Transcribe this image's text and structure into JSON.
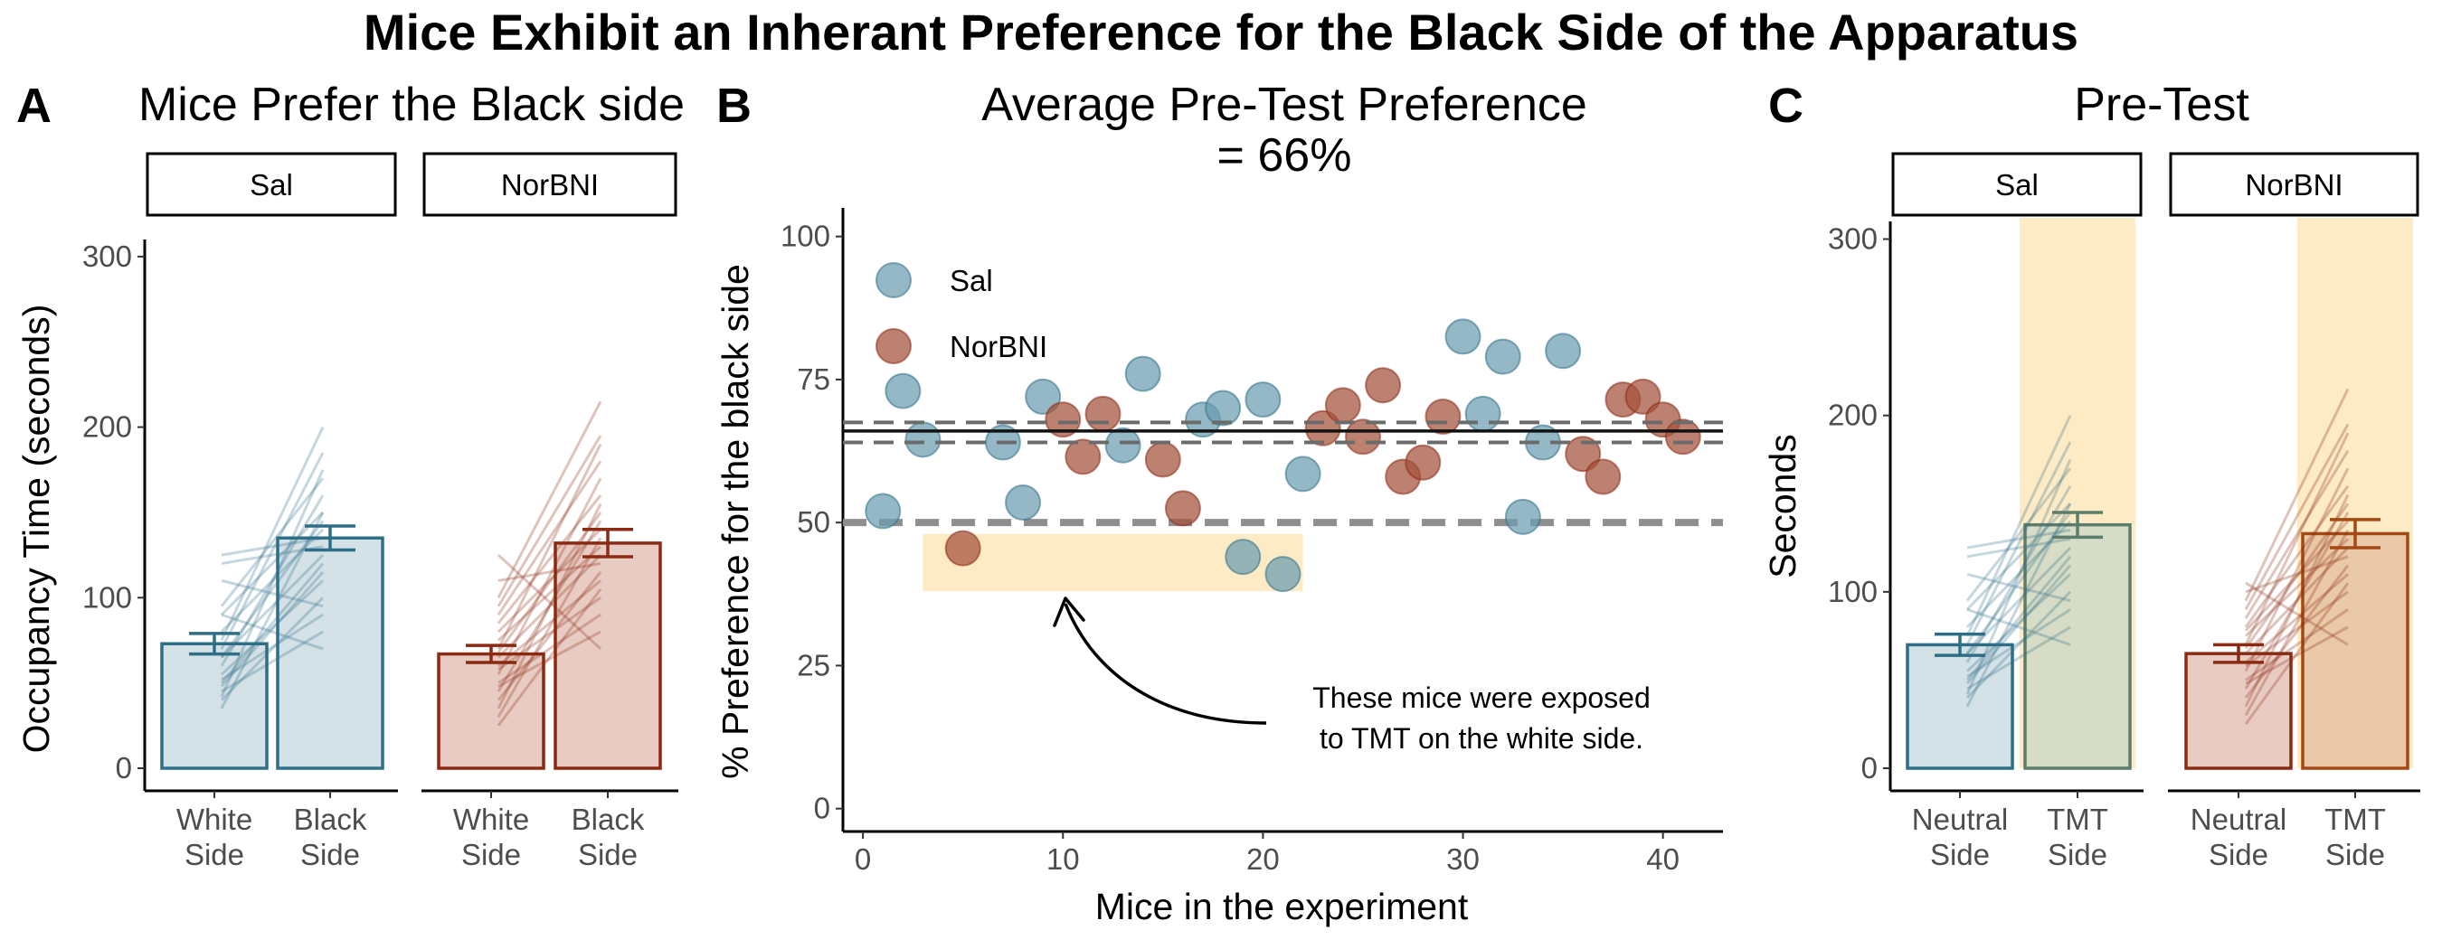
{
  "figure_title": "Mice Exhibit an Inherant Preference for the Black Side of the Apparatus",
  "colors": {
    "sal": "#2e6f87",
    "sal_fill": "#d4e1e7",
    "sal_point": "#6b9cb0",
    "norbni": "#8b2a12",
    "norbni_fill": "#e8ccc4",
    "norbni_point": "#a4513a",
    "tmt_band": "#fdebc6",
    "tmt_fill_sal": "#d6dcc5",
    "tmt_fill_norbni": "#e9c9a8",
    "tmt_edge_sal": "#5c7c6c",
    "tmt_edge_norbni": "#a44814"
  },
  "chart_data": [
    {
      "panel": "A",
      "type": "bar",
      "title": "Mice Prefer the Black side",
      "xlabel": "",
      "ylabel": "Occupancy Time (seconds)",
      "ylim": [
        0,
        310
      ],
      "yticks": [
        0,
        100,
        200,
        300
      ],
      "categories": [
        "White\nSide",
        "Black\nSide"
      ],
      "facets": [
        {
          "name": "Sal",
          "values": [
            73,
            135
          ],
          "sem": [
            6,
            7
          ],
          "pairs": [
            [
              120,
              130
            ],
            [
              125,
              135
            ],
            [
              95,
              170
            ],
            [
              90,
              150
            ],
            [
              80,
              140
            ],
            [
              75,
              200
            ],
            [
              70,
              185
            ],
            [
              65,
              125
            ],
            [
              60,
              160
            ],
            [
              55,
              110
            ],
            [
              52,
              90
            ],
            [
              50,
              120
            ],
            [
              48,
              115
            ],
            [
              45,
              80
            ],
            [
              42,
              175
            ],
            [
              40,
              100
            ],
            [
              35,
              150
            ],
            [
              90,
              70
            ],
            [
              110,
              95
            ],
            [
              65,
              145
            ]
          ]
        },
        {
          "name": "NorBNI",
          "values": [
            67,
            132
          ],
          "sem": [
            5,
            8
          ],
          "pairs": [
            [
              125,
              70
            ],
            [
              110,
              120
            ],
            [
              100,
              215
            ],
            [
              95,
              195
            ],
            [
              90,
              180
            ],
            [
              85,
              160
            ],
            [
              80,
              140
            ],
            [
              75,
              130
            ],
            [
              70,
              190
            ],
            [
              68,
              150
            ],
            [
              65,
              125
            ],
            [
              60,
              110
            ],
            [
              58,
              100
            ],
            [
              55,
              170
            ],
            [
              50,
              90
            ],
            [
              48,
              80
            ],
            [
              45,
              145
            ],
            [
              40,
              115
            ],
            [
              35,
              155
            ],
            [
              30,
              135
            ],
            [
              25,
              105
            ]
          ]
        }
      ]
    },
    {
      "panel": "B",
      "type": "scatter",
      "title": "Average Pre-Test Preference\n= 66%",
      "xlabel": "Mice in the experiment",
      "ylabel": "% Preference for the black side",
      "xlim": [
        -1,
        43
      ],
      "ylim": [
        -4,
        105
      ],
      "xticks": [
        0,
        10,
        20,
        30,
        40
      ],
      "yticks": [
        0,
        25,
        50,
        75,
        100
      ],
      "legend": {
        "position": "top-left",
        "entries": [
          "Sal",
          "NorBNI"
        ]
      },
      "mean_line": 66,
      "ci_lines": [
        64,
        67.5
      ],
      "reference_line": 50,
      "highlight": {
        "x": [
          3,
          22
        ],
        "y": [
          38,
          48
        ]
      },
      "annotation": "These mice were exposed\nto TMT on the white side.",
      "series": [
        {
          "name": "Sal",
          "points": [
            [
              1,
              52
            ],
            [
              2,
              73
            ],
            [
              3,
              64.5
            ],
            [
              7,
              64
            ],
            [
              8,
              53.5
            ],
            [
              9,
              72
            ],
            [
              13,
              63.5
            ],
            [
              14,
              76
            ],
            [
              17,
              68
            ],
            [
              18,
              70
            ],
            [
              19,
              44
            ],
            [
              20,
              71.5
            ],
            [
              21,
              41
            ],
            [
              22,
              58.5
            ],
            [
              30,
              82.5
            ],
            [
              31,
              69
            ],
            [
              32,
              79
            ],
            [
              33,
              51
            ],
            [
              34,
              64
            ],
            [
              35,
              80
            ]
          ]
        },
        {
          "name": "NorBNI",
          "points": [
            [
              5,
              45.5
            ],
            [
              10,
              68
            ],
            [
              11,
              61.5
            ],
            [
              12,
              69
            ],
            [
              15,
              61
            ],
            [
              16,
              52.5
            ],
            [
              23,
              66.5
            ],
            [
              24,
              70.5
            ],
            [
              25,
              65
            ],
            [
              26,
              74
            ],
            [
              27,
              58
            ],
            [
              28,
              60.5
            ],
            [
              29,
              68.5
            ],
            [
              36,
              62
            ],
            [
              37,
              58
            ],
            [
              38,
              71.5
            ],
            [
              39,
              72
            ],
            [
              40,
              68
            ],
            [
              41,
              65
            ]
          ]
        }
      ]
    },
    {
      "panel": "C",
      "type": "bar",
      "title": "Pre-Test",
      "xlabel": "",
      "ylabel": "Seconds",
      "ylim": [
        0,
        310
      ],
      "yticks": [
        0,
        100,
        200,
        300
      ],
      "categories": [
        "Neutral\nSide",
        "TMT\nSide"
      ],
      "facets": [
        {
          "name": "Sal",
          "values": [
            70,
            138
          ],
          "sem": [
            6,
            7
          ],
          "pairs": [
            [
              120,
              130
            ],
            [
              125,
              135
            ],
            [
              95,
              170
            ],
            [
              90,
              150
            ],
            [
              80,
              140
            ],
            [
              75,
              200
            ],
            [
              70,
              185
            ],
            [
              65,
              125
            ],
            [
              60,
              160
            ],
            [
              55,
              110
            ],
            [
              52,
              90
            ],
            [
              50,
              120
            ],
            [
              48,
              115
            ],
            [
              45,
              80
            ],
            [
              42,
              175
            ],
            [
              40,
              100
            ],
            [
              35,
              150
            ],
            [
              90,
              70
            ],
            [
              110,
              95
            ],
            [
              65,
              145
            ]
          ]
        },
        {
          "name": "NorBNI",
          "values": [
            65,
            133
          ],
          "sem": [
            5,
            8
          ],
          "pairs": [
            [
              105,
              70
            ],
            [
              100,
              120
            ],
            [
              95,
              215
            ],
            [
              90,
              195
            ],
            [
              85,
              180
            ],
            [
              80,
              160
            ],
            [
              78,
              140
            ],
            [
              75,
              130
            ],
            [
              70,
              190
            ],
            [
              68,
              150
            ],
            [
              65,
              125
            ],
            [
              60,
              110
            ],
            [
              58,
              100
            ],
            [
              55,
              170
            ],
            [
              50,
              90
            ],
            [
              48,
              80
            ],
            [
              45,
              145
            ],
            [
              40,
              115
            ],
            [
              35,
              155
            ],
            [
              30,
              135
            ],
            [
              25,
              105
            ]
          ]
        }
      ]
    }
  ],
  "panel_labels": [
    "A",
    "B",
    "C"
  ]
}
